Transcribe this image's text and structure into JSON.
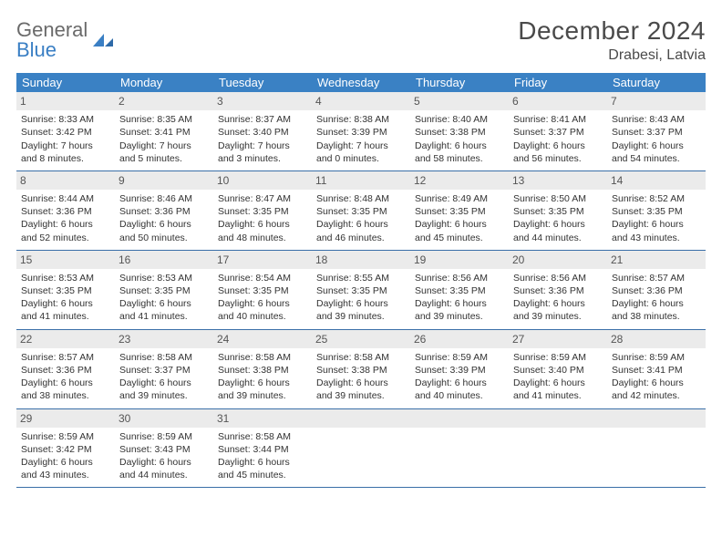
{
  "brand": {
    "word1": "General",
    "word2": "Blue"
  },
  "title": "December 2024",
  "location": "Drabesi, Latvia",
  "colors": {
    "header_bg": "#3a81c4",
    "header_text": "#ffffff",
    "daynum_bg": "#ebebeb",
    "week_divider": "#3a6fa8",
    "body_text": "#333333",
    "title_text": "#4a4a4a",
    "logo_gray": "#6a6a6a",
    "logo_blue": "#3a7fc4"
  },
  "typography": {
    "title_fontsize": 28,
    "location_fontsize": 16,
    "weekday_fontsize": 13,
    "daynum_fontsize": 12,
    "body_fontsize": 10.5
  },
  "weekdays": [
    "Sunday",
    "Monday",
    "Tuesday",
    "Wednesday",
    "Thursday",
    "Friday",
    "Saturday"
  ],
  "weeks": [
    [
      {
        "n": "1",
        "sr": "Sunrise: 8:33 AM",
        "ss": "Sunset: 3:42 PM",
        "d1": "Daylight: 7 hours",
        "d2": "and 8 minutes."
      },
      {
        "n": "2",
        "sr": "Sunrise: 8:35 AM",
        "ss": "Sunset: 3:41 PM",
        "d1": "Daylight: 7 hours",
        "d2": "and 5 minutes."
      },
      {
        "n": "3",
        "sr": "Sunrise: 8:37 AM",
        "ss": "Sunset: 3:40 PM",
        "d1": "Daylight: 7 hours",
        "d2": "and 3 minutes."
      },
      {
        "n": "4",
        "sr": "Sunrise: 8:38 AM",
        "ss": "Sunset: 3:39 PM",
        "d1": "Daylight: 7 hours",
        "d2": "and 0 minutes."
      },
      {
        "n": "5",
        "sr": "Sunrise: 8:40 AM",
        "ss": "Sunset: 3:38 PM",
        "d1": "Daylight: 6 hours",
        "d2": "and 58 minutes."
      },
      {
        "n": "6",
        "sr": "Sunrise: 8:41 AM",
        "ss": "Sunset: 3:37 PM",
        "d1": "Daylight: 6 hours",
        "d2": "and 56 minutes."
      },
      {
        "n": "7",
        "sr": "Sunrise: 8:43 AM",
        "ss": "Sunset: 3:37 PM",
        "d1": "Daylight: 6 hours",
        "d2": "and 54 minutes."
      }
    ],
    [
      {
        "n": "8",
        "sr": "Sunrise: 8:44 AM",
        "ss": "Sunset: 3:36 PM",
        "d1": "Daylight: 6 hours",
        "d2": "and 52 minutes."
      },
      {
        "n": "9",
        "sr": "Sunrise: 8:46 AM",
        "ss": "Sunset: 3:36 PM",
        "d1": "Daylight: 6 hours",
        "d2": "and 50 minutes."
      },
      {
        "n": "10",
        "sr": "Sunrise: 8:47 AM",
        "ss": "Sunset: 3:35 PM",
        "d1": "Daylight: 6 hours",
        "d2": "and 48 minutes."
      },
      {
        "n": "11",
        "sr": "Sunrise: 8:48 AM",
        "ss": "Sunset: 3:35 PM",
        "d1": "Daylight: 6 hours",
        "d2": "and 46 minutes."
      },
      {
        "n": "12",
        "sr": "Sunrise: 8:49 AM",
        "ss": "Sunset: 3:35 PM",
        "d1": "Daylight: 6 hours",
        "d2": "and 45 minutes."
      },
      {
        "n": "13",
        "sr": "Sunrise: 8:50 AM",
        "ss": "Sunset: 3:35 PM",
        "d1": "Daylight: 6 hours",
        "d2": "and 44 minutes."
      },
      {
        "n": "14",
        "sr": "Sunrise: 8:52 AM",
        "ss": "Sunset: 3:35 PM",
        "d1": "Daylight: 6 hours",
        "d2": "and 43 minutes."
      }
    ],
    [
      {
        "n": "15",
        "sr": "Sunrise: 8:53 AM",
        "ss": "Sunset: 3:35 PM",
        "d1": "Daylight: 6 hours",
        "d2": "and 41 minutes."
      },
      {
        "n": "16",
        "sr": "Sunrise: 8:53 AM",
        "ss": "Sunset: 3:35 PM",
        "d1": "Daylight: 6 hours",
        "d2": "and 41 minutes."
      },
      {
        "n": "17",
        "sr": "Sunrise: 8:54 AM",
        "ss": "Sunset: 3:35 PM",
        "d1": "Daylight: 6 hours",
        "d2": "and 40 minutes."
      },
      {
        "n": "18",
        "sr": "Sunrise: 8:55 AM",
        "ss": "Sunset: 3:35 PM",
        "d1": "Daylight: 6 hours",
        "d2": "and 39 minutes."
      },
      {
        "n": "19",
        "sr": "Sunrise: 8:56 AM",
        "ss": "Sunset: 3:35 PM",
        "d1": "Daylight: 6 hours",
        "d2": "and 39 minutes."
      },
      {
        "n": "20",
        "sr": "Sunrise: 8:56 AM",
        "ss": "Sunset: 3:36 PM",
        "d1": "Daylight: 6 hours",
        "d2": "and 39 minutes."
      },
      {
        "n": "21",
        "sr": "Sunrise: 8:57 AM",
        "ss": "Sunset: 3:36 PM",
        "d1": "Daylight: 6 hours",
        "d2": "and 38 minutes."
      }
    ],
    [
      {
        "n": "22",
        "sr": "Sunrise: 8:57 AM",
        "ss": "Sunset: 3:36 PM",
        "d1": "Daylight: 6 hours",
        "d2": "and 38 minutes."
      },
      {
        "n": "23",
        "sr": "Sunrise: 8:58 AM",
        "ss": "Sunset: 3:37 PM",
        "d1": "Daylight: 6 hours",
        "d2": "and 39 minutes."
      },
      {
        "n": "24",
        "sr": "Sunrise: 8:58 AM",
        "ss": "Sunset: 3:38 PM",
        "d1": "Daylight: 6 hours",
        "d2": "and 39 minutes."
      },
      {
        "n": "25",
        "sr": "Sunrise: 8:58 AM",
        "ss": "Sunset: 3:38 PM",
        "d1": "Daylight: 6 hours",
        "d2": "and 39 minutes."
      },
      {
        "n": "26",
        "sr": "Sunrise: 8:59 AM",
        "ss": "Sunset: 3:39 PM",
        "d1": "Daylight: 6 hours",
        "d2": "and 40 minutes."
      },
      {
        "n": "27",
        "sr": "Sunrise: 8:59 AM",
        "ss": "Sunset: 3:40 PM",
        "d1": "Daylight: 6 hours",
        "d2": "and 41 minutes."
      },
      {
        "n": "28",
        "sr": "Sunrise: 8:59 AM",
        "ss": "Sunset: 3:41 PM",
        "d1": "Daylight: 6 hours",
        "d2": "and 42 minutes."
      }
    ],
    [
      {
        "n": "29",
        "sr": "Sunrise: 8:59 AM",
        "ss": "Sunset: 3:42 PM",
        "d1": "Daylight: 6 hours",
        "d2": "and 43 minutes."
      },
      {
        "n": "30",
        "sr": "Sunrise: 8:59 AM",
        "ss": "Sunset: 3:43 PM",
        "d1": "Daylight: 6 hours",
        "d2": "and 44 minutes."
      },
      {
        "n": "31",
        "sr": "Sunrise: 8:58 AM",
        "ss": "Sunset: 3:44 PM",
        "d1": "Daylight: 6 hours",
        "d2": "and 45 minutes."
      },
      {
        "n": "",
        "sr": "",
        "ss": "",
        "d1": "",
        "d2": ""
      },
      {
        "n": "",
        "sr": "",
        "ss": "",
        "d1": "",
        "d2": ""
      },
      {
        "n": "",
        "sr": "",
        "ss": "",
        "d1": "",
        "d2": ""
      },
      {
        "n": "",
        "sr": "",
        "ss": "",
        "d1": "",
        "d2": ""
      }
    ]
  ]
}
